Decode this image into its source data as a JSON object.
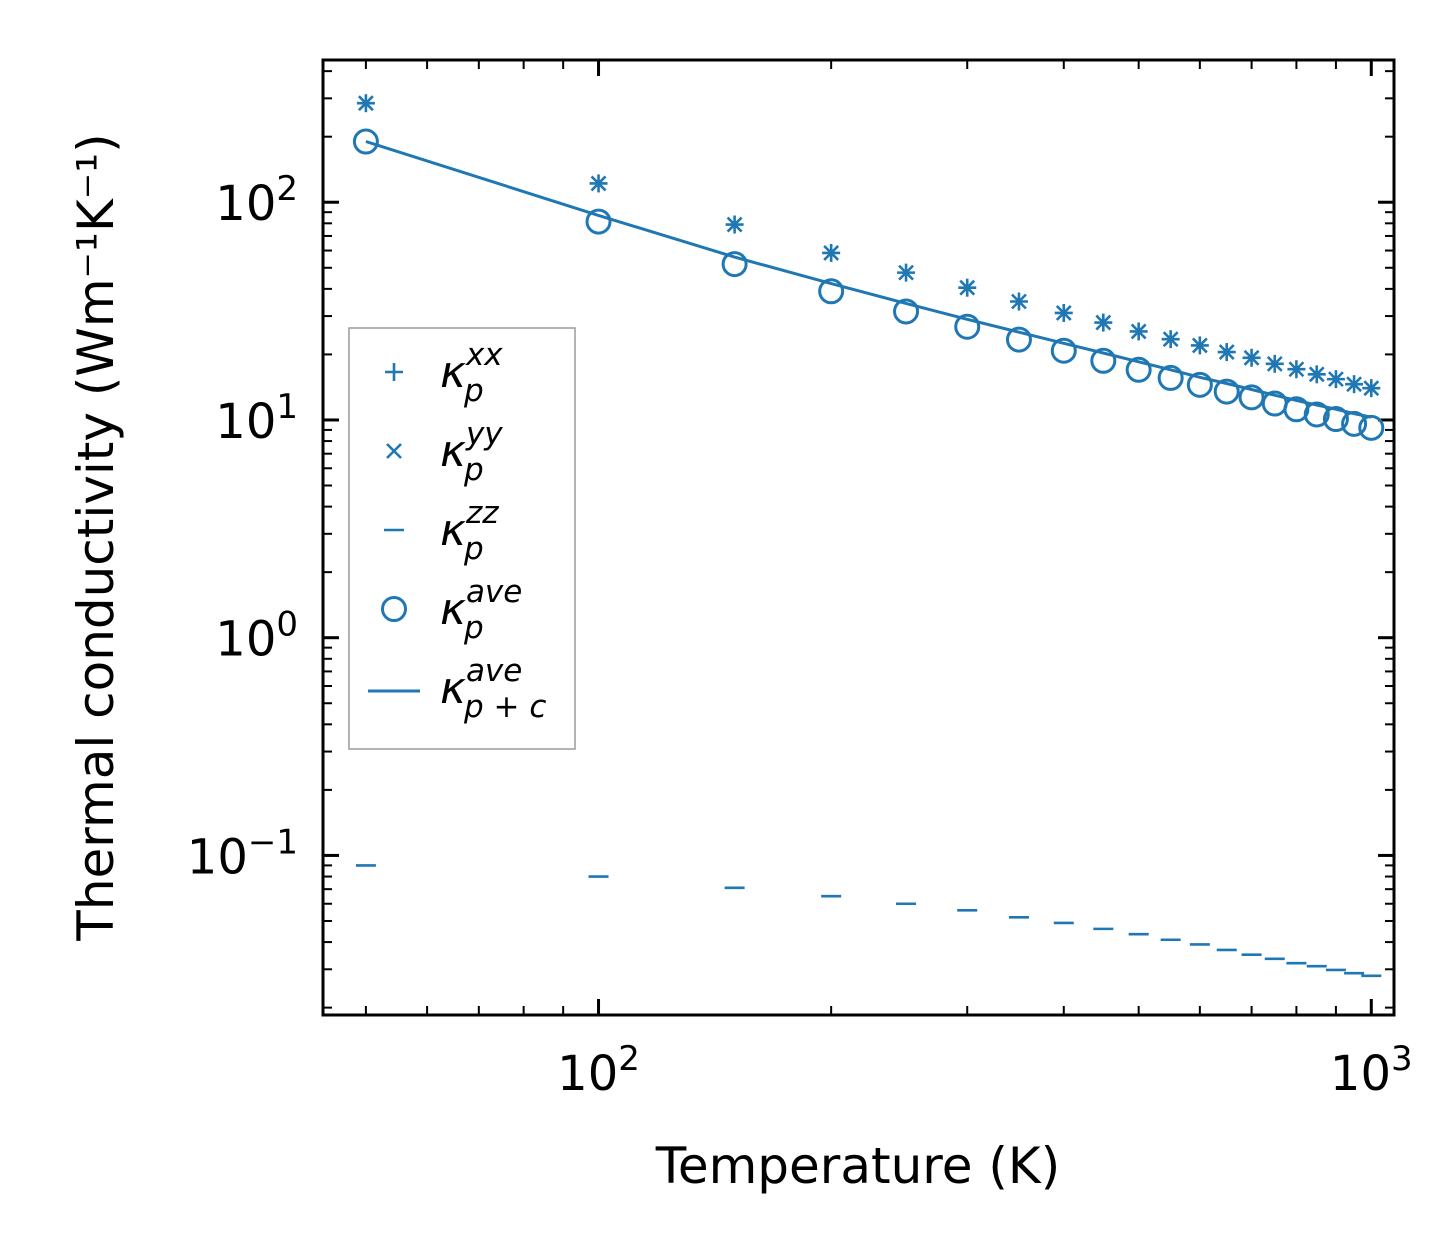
{
  "chart_data": {
    "type": "scatter",
    "title": "",
    "xlabel": "Temperature (K)",
    "ylabel": "Thermal conductivity (Wm⁻¹K⁻¹)",
    "xscale": "log",
    "yscale": "log",
    "xlim": [
      44,
      1070
    ],
    "ylim": [
      0.0185,
      450
    ],
    "x_ticks": [
      {
        "value": 100,
        "base": "10",
        "exp": "2"
      },
      {
        "value": 1000,
        "base": "10",
        "exp": "3"
      }
    ],
    "y_ticks": [
      {
        "value": 0.1,
        "base": "10",
        "exp": "−1"
      },
      {
        "value": 1,
        "base": "10",
        "exp": "0"
      },
      {
        "value": 10,
        "base": "10",
        "exp": "1"
      },
      {
        "value": 100,
        "base": "10",
        "exp": "2"
      }
    ],
    "color": "#1f77b4",
    "x": [
      50,
      100,
      150,
      200,
      250,
      300,
      350,
      400,
      450,
      500,
      550,
      600,
      650,
      700,
      750,
      800,
      850,
      900,
      950,
      1000
    ],
    "series": [
      {
        "name": "xx",
        "marker": "plus",
        "values": [
          285,
          122,
          79,
          58.5,
          47.5,
          40.5,
          35,
          31,
          28,
          25.5,
          23.5,
          22,
          20.5,
          19.3,
          18.1,
          17.1,
          16.2,
          15.4,
          14.6,
          14.0
        ]
      },
      {
        "name": "yy",
        "marker": "x",
        "values": [
          285,
          122,
          79,
          58.5,
          47.5,
          40.5,
          35,
          31,
          28,
          25.5,
          23.5,
          22,
          20.5,
          19.3,
          18.1,
          17.1,
          16.2,
          15.4,
          14.6,
          14.0
        ]
      },
      {
        "name": "zz",
        "marker": "hline",
        "values": [
          0.09,
          0.08,
          0.071,
          0.065,
          0.06,
          0.056,
          0.052,
          0.049,
          0.046,
          0.0435,
          0.041,
          0.039,
          0.0368,
          0.035,
          0.0335,
          0.032,
          0.031,
          0.0298,
          0.0288,
          0.028
        ]
      },
      {
        "name": "ave",
        "marker": "circle",
        "values": [
          190,
          81.5,
          52,
          39,
          31.5,
          26.8,
          23.4,
          20.8,
          18.7,
          17.0,
          15.6,
          14.5,
          13.5,
          12.7,
          11.9,
          11.2,
          10.6,
          10.1,
          9.6,
          9.2
        ]
      },
      {
        "name": "p+c",
        "marker": "line",
        "values": [
          190,
          87,
          56,
          42.3,
          34.3,
          29.0,
          25.3,
          22.5,
          20.3,
          18.5,
          17.0,
          15.7,
          14.7,
          13.8,
          13.0,
          12.3,
          11.7,
          11.2,
          10.7,
          10.3
        ]
      }
    ],
    "legend": {
      "placement": "center-left",
      "entries": [
        {
          "symbol": "+",
          "main": "κ",
          "sup": "xx",
          "sub": "p"
        },
        {
          "symbol": "×",
          "main": "κ",
          "sup": "yy",
          "sub": "p"
        },
        {
          "symbol": "–",
          "main": "κ",
          "sup": "zz",
          "sub": "p"
        },
        {
          "symbol": "○",
          "main": "κ",
          "sup": "ave",
          "sub": "p"
        },
        {
          "symbol": "—",
          "main": "κ",
          "sup": "ave",
          "sub": "p + c"
        }
      ]
    }
  }
}
